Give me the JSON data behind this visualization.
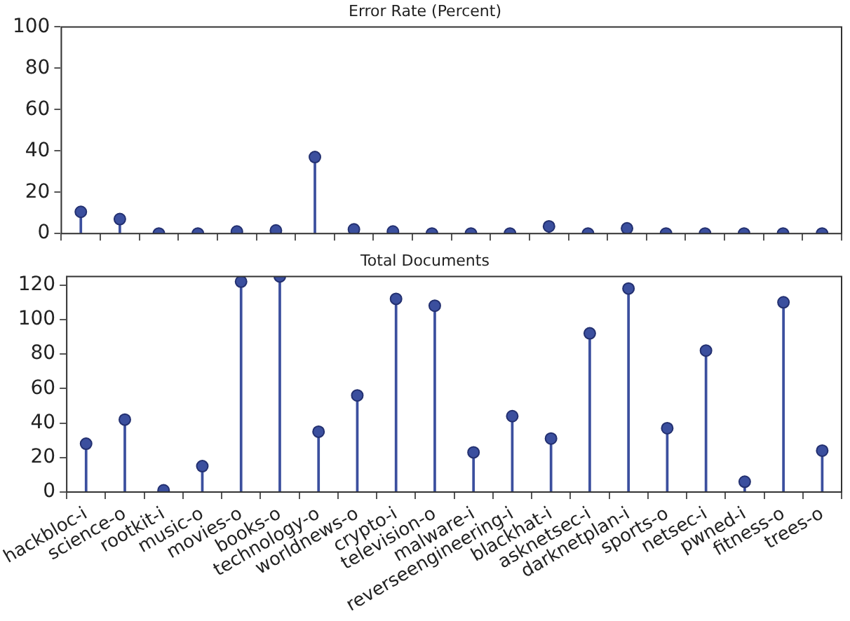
{
  "chart_data": [
    {
      "type": "lollipop",
      "title": "Error Rate (Percent)",
      "categories": [
        null,
        null,
        null,
        null,
        null,
        null,
        null,
        null,
        null,
        null,
        null,
        null,
        null,
        null,
        null,
        null,
        null,
        null,
        null,
        null
      ],
      "values": [
        10.5,
        7,
        0,
        0,
        1,
        1.5,
        37,
        2,
        1,
        0,
        0,
        0,
        3.5,
        0,
        2.5,
        0,
        0,
        0,
        0,
        0
      ],
      "color": "#3b4f9e",
      "ylim": [
        0,
        100
      ],
      "yticks": [
        0,
        20,
        40,
        60,
        80,
        100
      ],
      "grid": false,
      "marker": "circle",
      "tick_labels": "y"
    },
    {
      "type": "lollipop",
      "title": "Total Documents",
      "categories": [
        "hackbloc-i",
        "science-o",
        "rootkit-i",
        "music-o",
        "movies-o",
        "books-o",
        "technology-o",
        "worldnews-o",
        "crypto-i",
        "television-o",
        "malware-i",
        "reverseengineering-i",
        "blackhat-i",
        "asknetsec-i",
        "darknetplan-i",
        "sports-o",
        "netsec-i",
        "pwned-i",
        "fitness-o",
        "trees-o"
      ],
      "values": [
        28,
        42,
        1,
        15,
        122,
        125,
        35,
        56,
        112,
        108,
        23,
        44,
        31,
        92,
        118,
        37,
        82,
        6,
        110,
        24
      ],
      "color": "#3b4f9e",
      "ylim": [
        0,
        125
      ],
      "yticks": [
        0,
        20,
        40,
        60,
        80,
        100,
        120
      ],
      "grid": false,
      "marker": "circle"
    }
  ]
}
